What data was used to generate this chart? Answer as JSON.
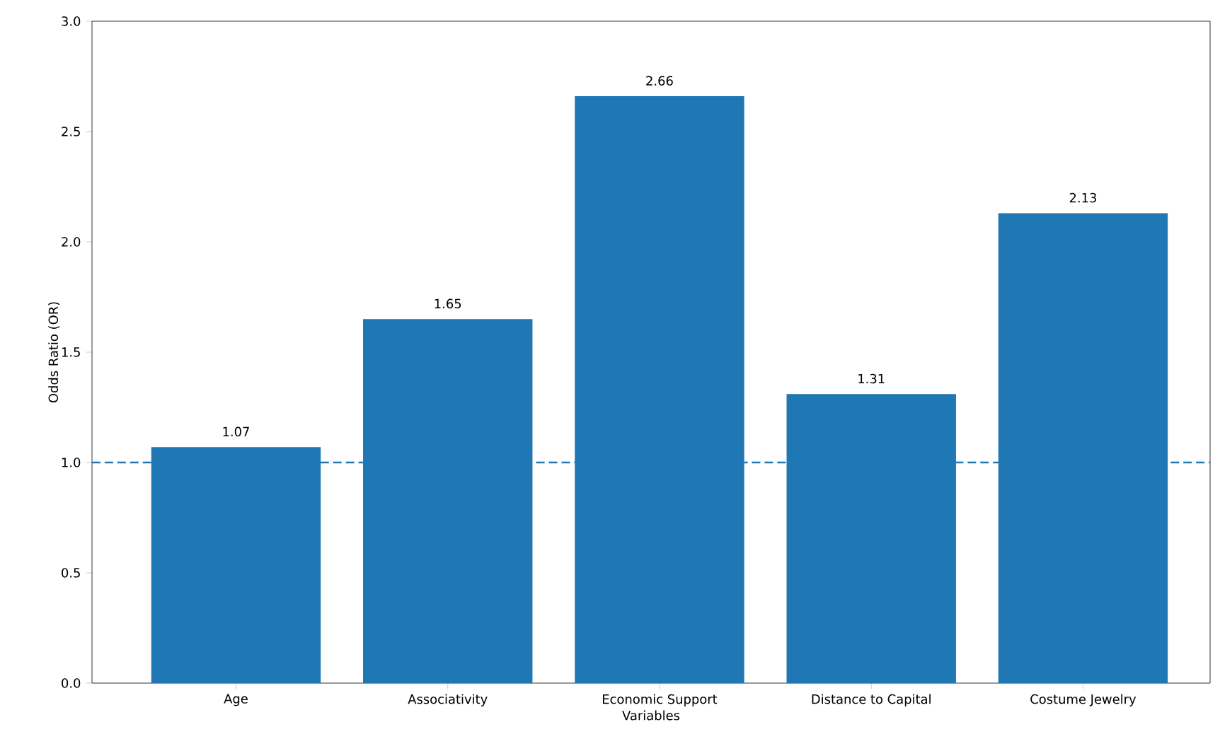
{
  "chart_data": {
    "type": "bar",
    "xlabel": "Variables",
    "ylabel": "Odds Ratio (OR)",
    "categories": [
      "Age",
      "Associativity",
      "Economic Support",
      "Distance to Capital",
      "Costume Jewelry"
    ],
    "values": [
      1.07,
      1.65,
      2.66,
      1.31,
      2.13
    ],
    "color": "#1f77b4",
    "data_labels": true,
    "ylim": [
      0,
      3.0
    ],
    "yticks": [
      {
        "value": 0,
        "label": "0.0"
      },
      {
        "value": 0.5,
        "label": "0.5"
      },
      {
        "value": 1.0,
        "label": "1.0"
      },
      {
        "value": 1.5,
        "label": "1.5"
      },
      {
        "value": 2.0,
        "label": "2.0"
      },
      {
        "value": 2.5,
        "label": "2.5"
      },
      {
        "value": 3.0,
        "label": "3.0"
      }
    ],
    "ref_lines": [
      {
        "axis": "y",
        "value": 1.0,
        "color": "#1f77b4",
        "line_style": "dashed"
      }
    ]
  }
}
